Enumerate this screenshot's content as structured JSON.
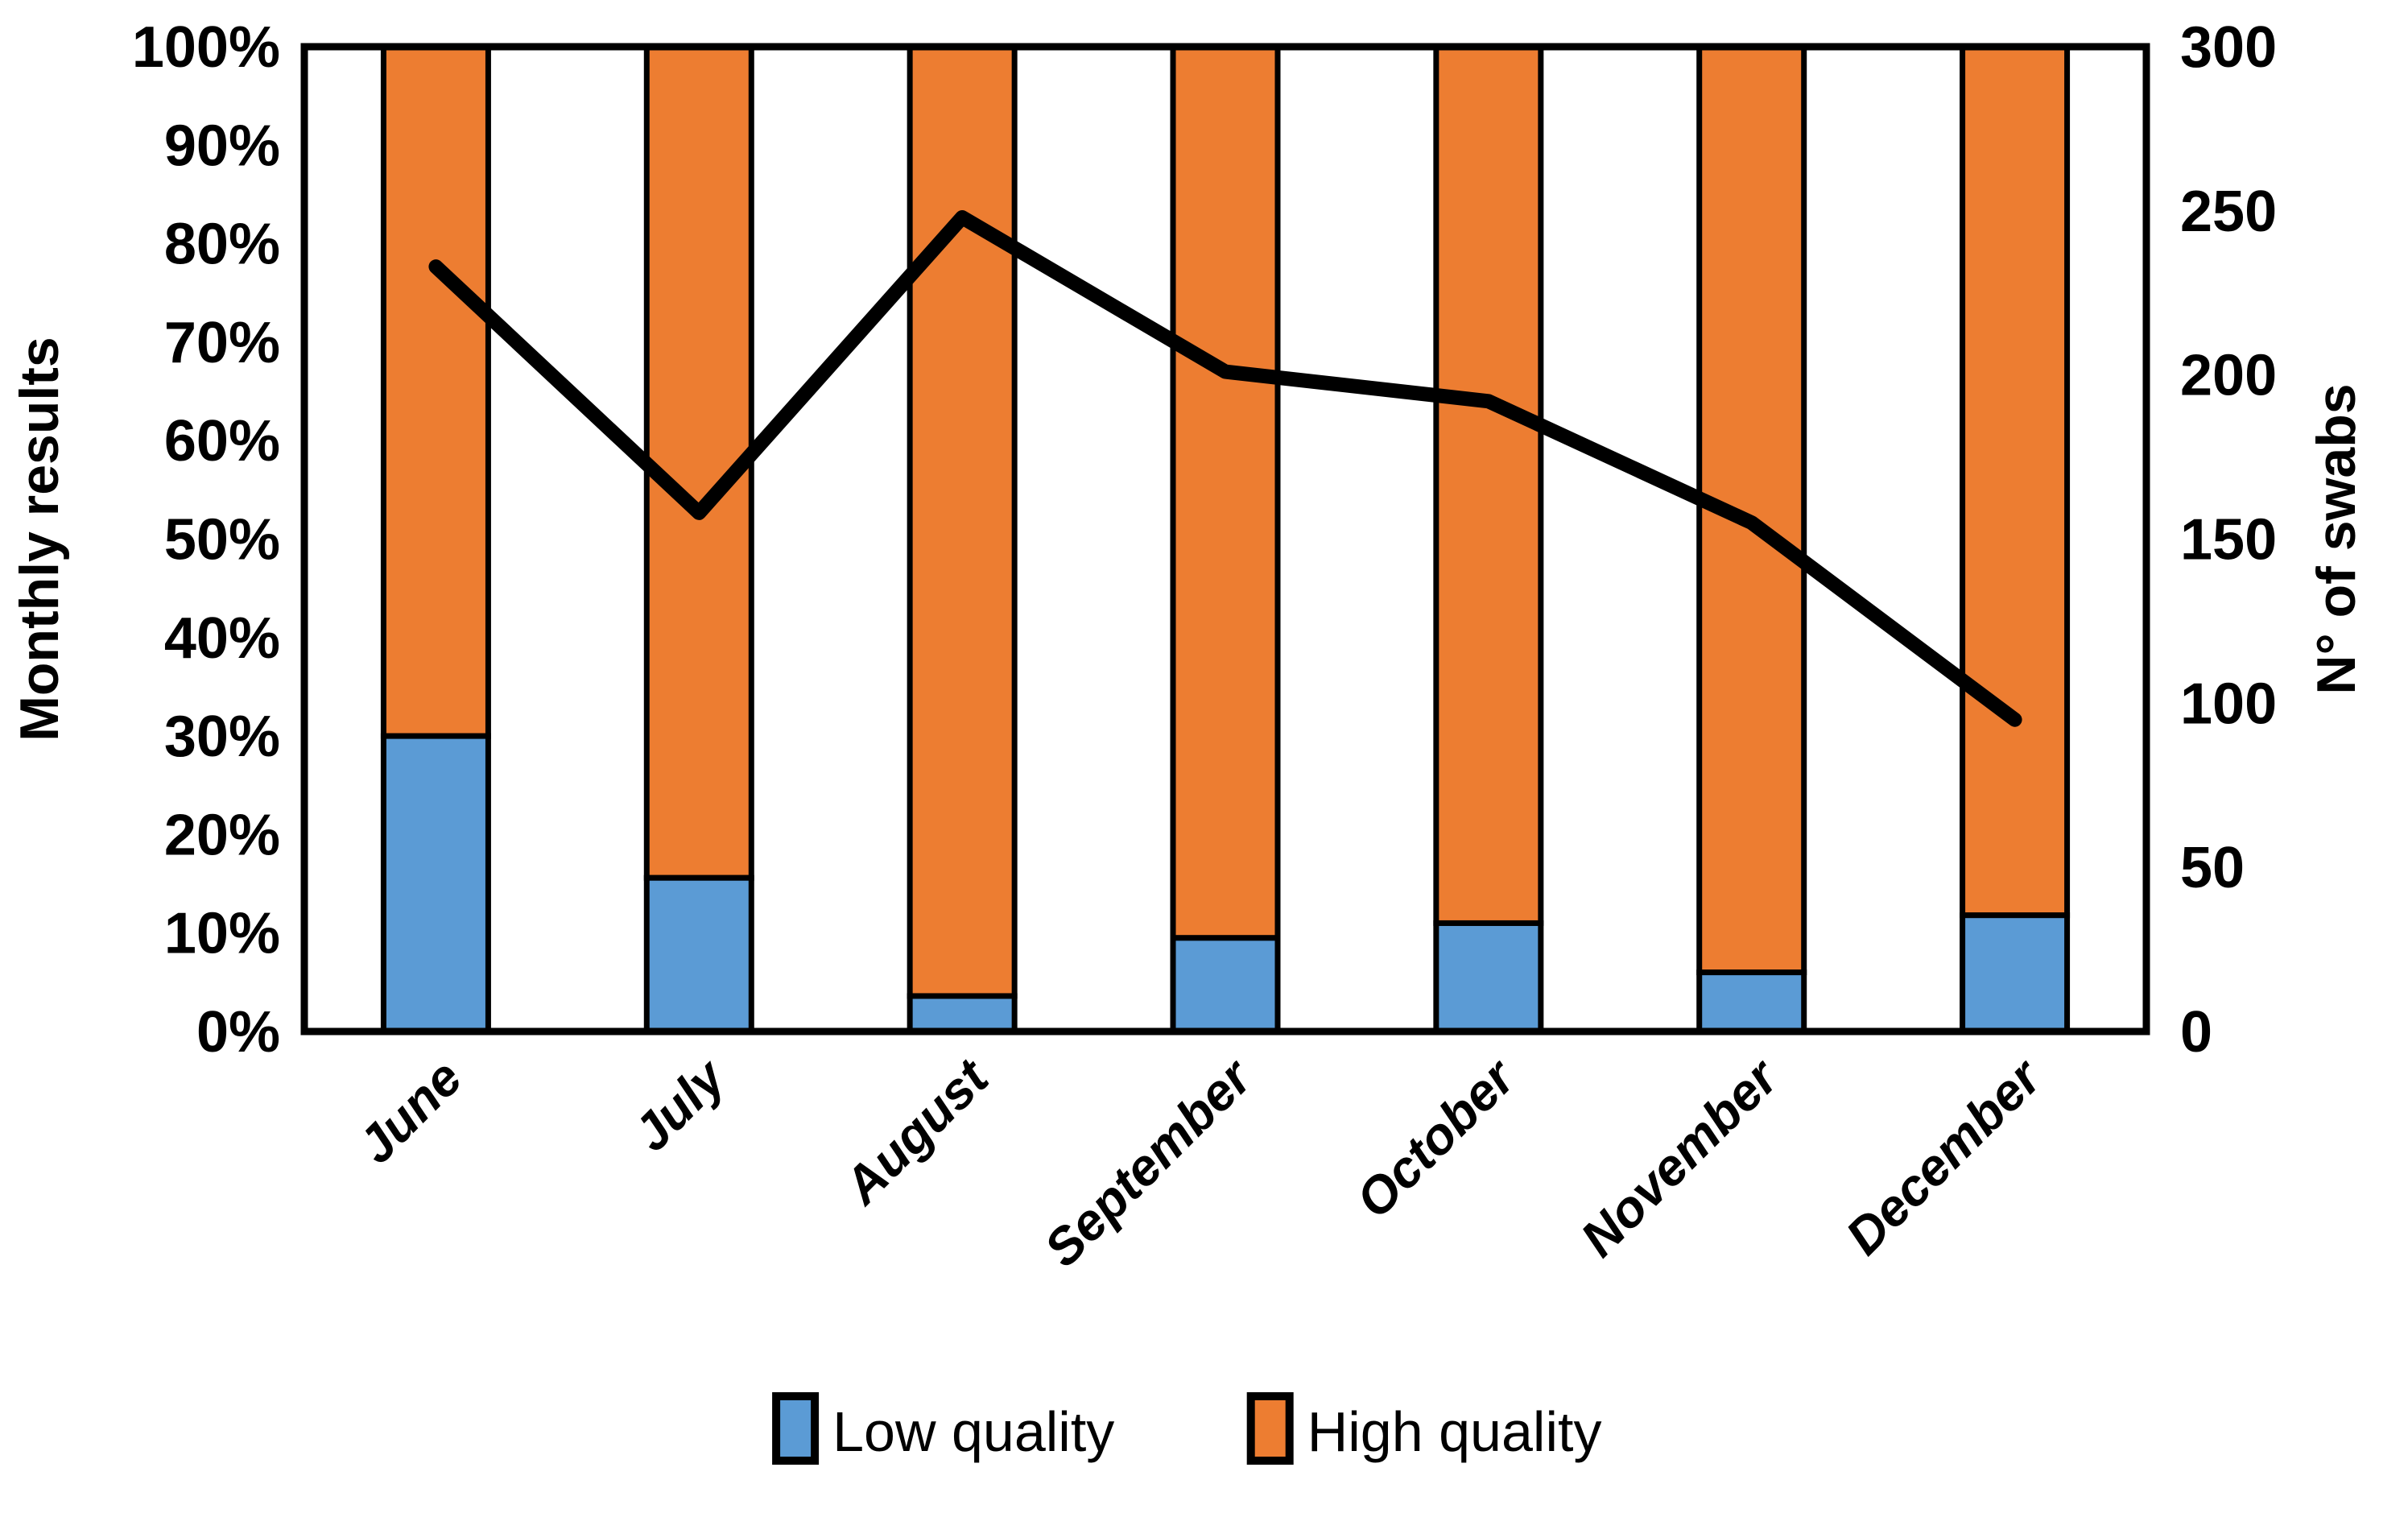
{
  "chart_data": {
    "type": "combo-100pct-stacked-bar-with-line",
    "categories": [
      "June",
      "July",
      "August",
      "September",
      "October",
      "November",
      "December"
    ],
    "series": [
      {
        "name": "Low quality",
        "type": "bar",
        "axis": "left",
        "color": "#5B9BD5",
        "values_pct": [
          30,
          15.6,
          3.6,
          9.5,
          11,
          6,
          11.8
        ]
      },
      {
        "name": "High quality",
        "type": "bar",
        "axis": "left",
        "color": "#ED7D31",
        "values_pct": [
          70,
          84.4,
          96.4,
          90.5,
          89,
          94,
          88.2
        ]
      },
      {
        "name": "N° of swabs",
        "type": "line",
        "axis": "right",
        "color": "#000000",
        "values": [
          233,
          158,
          248,
          201,
          192,
          155,
          95
        ]
      }
    ],
    "left_axis": {
      "title": "Monthly results",
      "min": 0,
      "max": 100,
      "tick_labels": [
        "0%",
        "10%",
        "20%",
        "30%",
        "40%",
        "50%",
        "60%",
        "70%",
        "80%",
        "90%",
        "100%"
      ]
    },
    "right_axis": {
      "title": "N° of swabs",
      "min": 0,
      "max": 300,
      "tick_labels": [
        "0",
        "50",
        "100",
        "150",
        "200",
        "250",
        "300"
      ]
    },
    "legend": [
      {
        "label": "Low quality",
        "color": "#5B9BD5"
      },
      {
        "label": "High quality",
        "color": "#ED7D31"
      }
    ],
    "grid": "off",
    "legend_position": "bottom",
    "plot_border_color": "#000000",
    "bar_border_color": "#000000",
    "line_color": "#000000",
    "text_color": "#000000",
    "background_color": "#ffffff"
  }
}
